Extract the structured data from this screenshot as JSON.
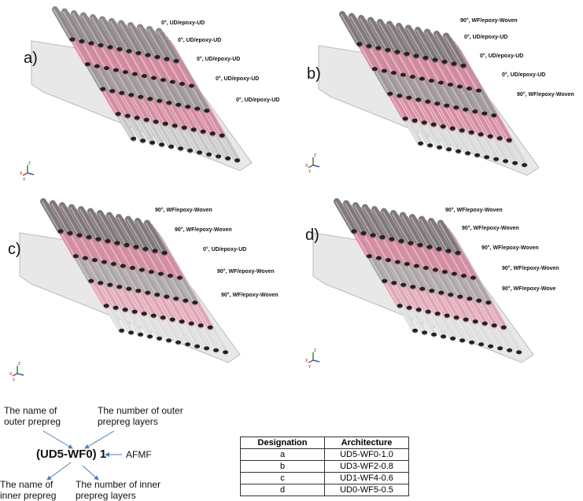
{
  "panels": [
    {
      "letter": "a)",
      "layers": [
        "0°, UD/epoxy-UD",
        "0°, UD/epoxy-UD",
        "0°, UD/epoxy-UD",
        "0°, UD/epoxy-UD",
        "0°, UD/epoxy-UD"
      ]
    },
    {
      "letter": "b)",
      "layers": [
        "90°, WF/epoxy-Woven",
        "0°, UD/epoxy-UD",
        "0°, UD/epoxy-UD",
        "0°, UD/epoxy-UD",
        "90°, WF/epoxy-Woven"
      ]
    },
    {
      "letter": "c)",
      "layers": [
        "90°, WF/epoxy-Woven",
        "90°, WF/epoxy-Woven",
        "0°, UD/epoxy-UD",
        "90°, WF/epoxy-Woven",
        "90°, WF/epoxy-Woven"
      ]
    },
    {
      "letter": "d)",
      "layers": [
        "90°, WF/epoxy-Woven",
        "90°, WF/epoxy-Woven",
        "90°, WF/epoxy-Woven",
        "90°, WF/epoxy-Woven",
        "90°, WF/epoxy-Wove"
      ]
    }
  ],
  "axes": {
    "x": "X",
    "y": "Y",
    "z": "Z"
  },
  "legend": {
    "outer_name": "The name of outer prepreg",
    "outer_count": "The number of outer prepreg layers",
    "code": "(UD5-WF0) 1",
    "afmf": "AFMF",
    "inner_name": "The name of inner prepreg",
    "inner_count": "The number of inner prepreg layers"
  },
  "table": {
    "header": [
      "Designation",
      "Architecture"
    ],
    "rows": [
      [
        "a",
        "UD5-WF0-1.0"
      ],
      [
        "b",
        "UD3-WF2-0.8"
      ],
      [
        "c",
        "UD1-WF4-0.6"
      ],
      [
        "d",
        "UD0-WF5-0.5"
      ]
    ]
  }
}
